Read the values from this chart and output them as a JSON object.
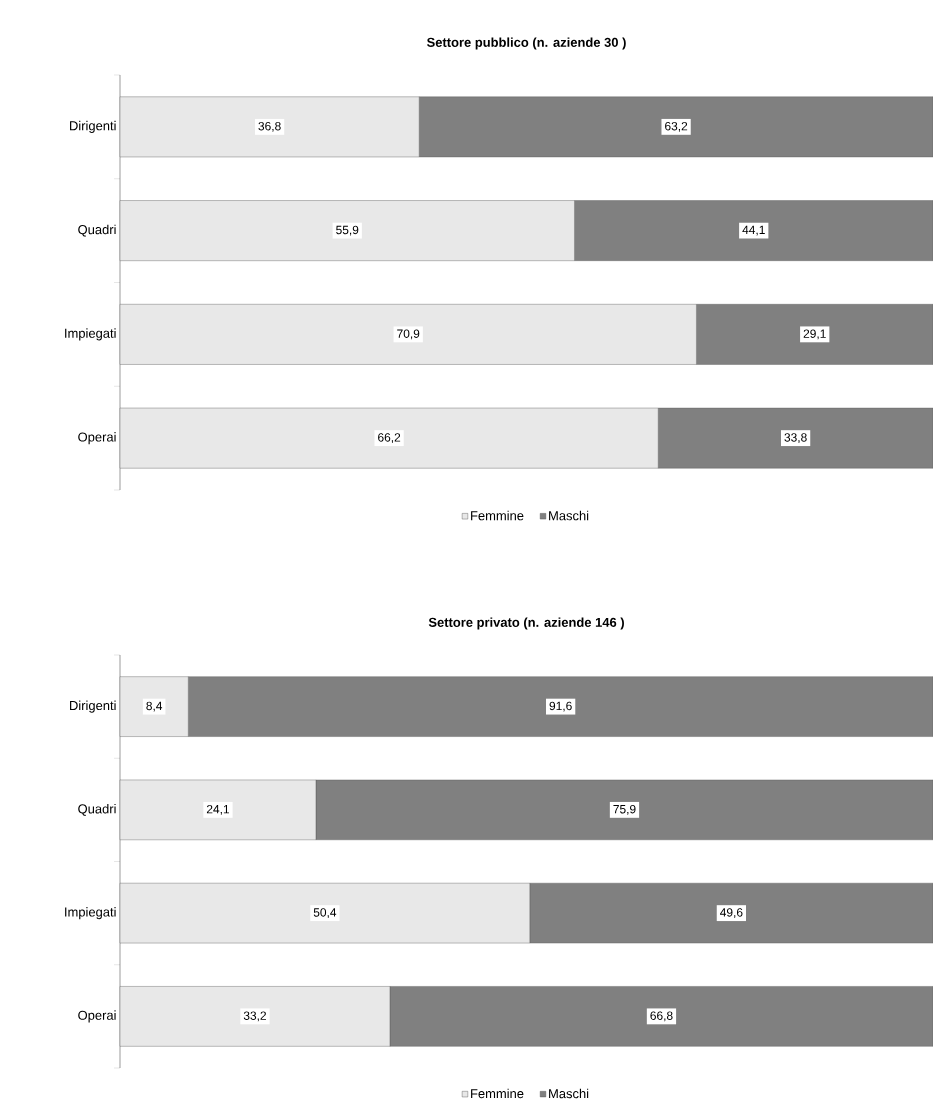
{
  "chart_data": [
    {
      "type": "bar",
      "orientation": "horizontal",
      "stacked": true,
      "title": "Settore pubblico (n. aziende 30 )",
      "categories": [
        "Dirigenti",
        "Quadri",
        "Impiegati",
        "Operai"
      ],
      "series": [
        {
          "name": "Femmine",
          "color": "#e8e8e8",
          "values": [
            36.8,
            55.9,
            70.9,
            66.2
          ],
          "value_labels": [
            "36,8",
            "55,9",
            "70,9",
            "66,2"
          ]
        },
        {
          "name": "Maschi",
          "color": "#808080",
          "values": [
            63.2,
            44.1,
            29.1,
            33.8
          ],
          "value_labels": [
            "63,2",
            "44,1",
            "29,1",
            "33,8"
          ]
        }
      ],
      "legend": "bottom",
      "tick_labels": "y"
    },
    {
      "type": "bar",
      "orientation": "horizontal",
      "stacked": true,
      "title": "Settore privato (n. aziende 146 )",
      "categories": [
        "Dirigenti",
        "Quadri",
        "Impiegati",
        "Operai"
      ],
      "series": [
        {
          "name": "Femmine",
          "color": "#e8e8e8",
          "values": [
            8.4,
            24.1,
            50.4,
            33.2
          ],
          "value_labels": [
            "8,4",
            "24,1",
            "50,4",
            "33,2"
          ]
        },
        {
          "name": "Maschi",
          "color": "#808080",
          "values": [
            91.6,
            75.9,
            49.6,
            66.8
          ],
          "value_labels": [
            "91,6",
            "75,9",
            "49,6",
            "66,8"
          ]
        }
      ],
      "legend": "bottom",
      "tick_labels": "y"
    }
  ]
}
